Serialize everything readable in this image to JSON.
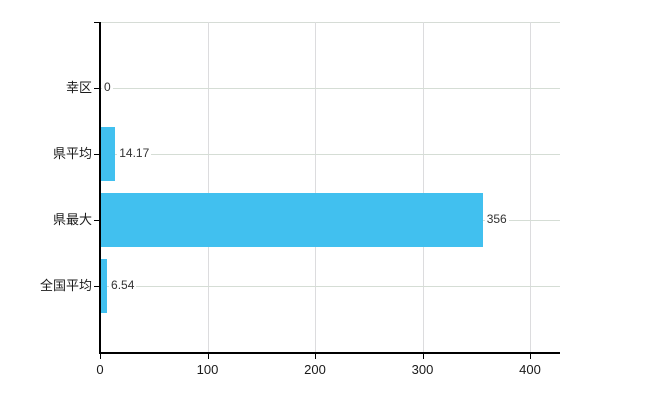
{
  "chart": {
    "bar_color": "#41C0EF",
    "axis_color": "#000000",
    "horizontal_gridline_color": "#d5ddd5",
    "vertical_gridline_color": "#dcdcde",
    "background": "#ffffff"
  },
  "chart_data": {
    "type": "bar",
    "orientation": "horizontal",
    "title": "",
    "xlabel": "",
    "ylabel": "",
    "categories": [
      "幸区",
      "県平均",
      "県最大",
      "全国平均"
    ],
    "values": [
      0,
      14.17,
      356,
      6.54
    ],
    "value_labels": [
      "0",
      "14.17",
      "356",
      "6.54"
    ],
    "xticks": [
      "0",
      "100",
      "200",
      "300",
      "400"
    ],
    "xtick_values": [
      0,
      100,
      200,
      300,
      400
    ],
    "xlim": [
      0,
      428
    ],
    "grid": true,
    "legend": false
  }
}
